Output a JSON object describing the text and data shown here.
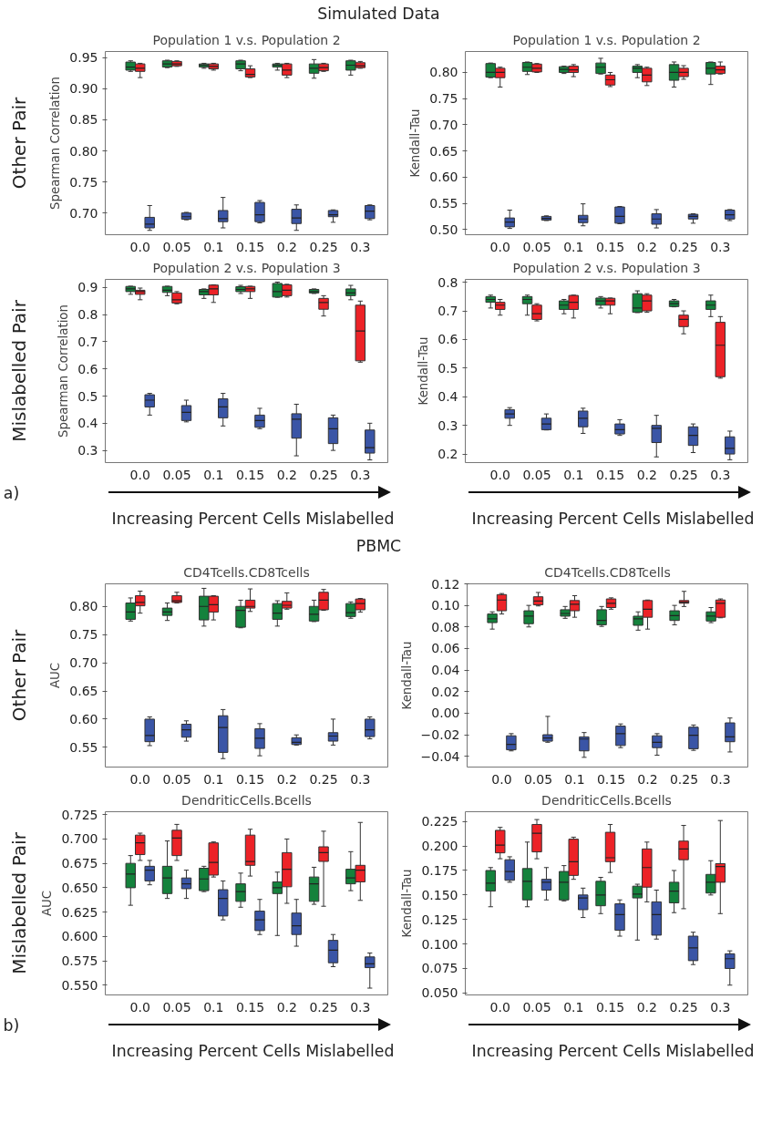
{
  "chart_data": [
    {
      "type": "box",
      "title": "Population 1 v.s. Population 2",
      "ylabel": "Spearman Correlation",
      "annotations": [
        "Simulated Data",
        "Other Pair"
      ],
      "categories": [
        "0.0",
        "0.05",
        "0.1",
        "0.15",
        "0.2",
        "0.25",
        "0.3"
      ],
      "ylim": [
        0.665,
        0.96
      ],
      "yticks": [
        {
          "value": 0.7,
          "label": "0.70"
        },
        {
          "value": 0.75,
          "label": "0.75"
        },
        {
          "value": 0.8,
          "label": "0.80"
        },
        {
          "value": 0.85,
          "label": "0.85"
        },
        {
          "value": 0.9,
          "label": "0.90"
        },
        {
          "value": 0.95,
          "label": "0.95"
        }
      ],
      "grid": false,
      "series": [
        {
          "color": "#14823c",
          "boxes": [
            {
              "low": 0.928,
              "q1": 0.93,
              "median": 0.935,
              "q3": 0.943,
              "high": 0.945
            },
            {
              "low": 0.934,
              "q1": 0.935,
              "median": 0.94,
              "q3": 0.945,
              "high": 0.946
            },
            {
              "low": 0.933,
              "q1": 0.935,
              "median": 0.938,
              "q3": 0.94,
              "high": 0.941
            },
            {
              "low": 0.929,
              "q1": 0.932,
              "median": 0.94,
              "q3": 0.945,
              "high": 0.946
            },
            {
              "low": 0.93,
              "q1": 0.935,
              "median": 0.938,
              "q3": 0.94,
              "high": 0.941
            },
            {
              "low": 0.917,
              "q1": 0.925,
              "median": 0.933,
              "q3": 0.94,
              "high": 0.947
            },
            {
              "low": 0.922,
              "q1": 0.93,
              "median": 0.938,
              "q3": 0.945,
              "high": 0.946
            }
          ]
        },
        {
          "color": "#ec2227",
          "boxes": [
            {
              "low": 0.918,
              "q1": 0.928,
              "median": 0.933,
              "q3": 0.94,
              "high": 0.941
            },
            {
              "low": 0.936,
              "q1": 0.937,
              "median": 0.94,
              "q3": 0.944,
              "high": 0.945
            },
            {
              "low": 0.93,
              "q1": 0.932,
              "median": 0.936,
              "q3": 0.94,
              "high": 0.941
            },
            {
              "low": 0.918,
              "q1": 0.919,
              "median": 0.923,
              "q3": 0.932,
              "high": 0.937
            },
            {
              "low": 0.918,
              "q1": 0.922,
              "median": 0.93,
              "q3": 0.94,
              "high": 0.941
            },
            {
              "low": 0.928,
              "q1": 0.929,
              "median": 0.934,
              "q3": 0.94,
              "high": 0.941
            },
            {
              "low": 0.933,
              "q1": 0.934,
              "median": 0.937,
              "q3": 0.942,
              "high": 0.944
            }
          ]
        },
        {
          "color": "#3a55a6",
          "boxes": [
            {
              "low": 0.672,
              "q1": 0.676,
              "median": 0.682,
              "q3": 0.693,
              "high": 0.712
            },
            {
              "low": 0.689,
              "q1": 0.69,
              "median": 0.694,
              "q3": 0.7,
              "high": 0.701
            },
            {
              "low": 0.676,
              "q1": 0.686,
              "median": 0.691,
              "q3": 0.704,
              "high": 0.725
            },
            {
              "low": 0.684,
              "q1": 0.686,
              "median": 0.697,
              "q3": 0.717,
              "high": 0.72
            },
            {
              "low": 0.672,
              "q1": 0.683,
              "median": 0.692,
              "q3": 0.706,
              "high": 0.713
            },
            {
              "low": 0.685,
              "q1": 0.694,
              "median": 0.697,
              "q3": 0.704,
              "high": 0.705
            },
            {
              "low": 0.689,
              "q1": 0.691,
              "median": 0.703,
              "q3": 0.712,
              "high": 0.713
            }
          ]
        }
      ]
    },
    {
      "type": "box",
      "title": "Population 1 v.s. Population 2",
      "ylabel": "Kendall-Tau",
      "categories": [
        "0.0",
        "0.05",
        "0.1",
        "0.15",
        "0.2",
        "0.25",
        "0.3"
      ],
      "ylim": [
        0.49,
        0.84
      ],
      "yticks": [
        {
          "value": 0.5,
          "label": "0.50"
        },
        {
          "value": 0.55,
          "label": "0.55"
        },
        {
          "value": 0.6,
          "label": "0.60"
        },
        {
          "value": 0.65,
          "label": "0.65"
        },
        {
          "value": 0.7,
          "label": "0.70"
        },
        {
          "value": 0.75,
          "label": "0.75"
        },
        {
          "value": 0.8,
          "label": "0.80"
        }
      ],
      "grid": false,
      "series": [
        {
          "color": "#14823c",
          "boxes": [
            {
              "low": 0.79,
              "q1": 0.791,
              "median": 0.8,
              "q3": 0.817,
              "high": 0.818
            },
            {
              "low": 0.796,
              "q1": 0.802,
              "median": 0.81,
              "q3": 0.819,
              "high": 0.82
            },
            {
              "low": 0.798,
              "q1": 0.8,
              "median": 0.806,
              "q3": 0.811,
              "high": 0.812
            },
            {
              "low": 0.797,
              "q1": 0.798,
              "median": 0.81,
              "q3": 0.818,
              "high": 0.827
            },
            {
              "low": 0.79,
              "q1": 0.8,
              "median": 0.808,
              "q3": 0.812,
              "high": 0.815
            },
            {
              "low": 0.772,
              "q1": 0.785,
              "median": 0.8,
              "q3": 0.815,
              "high": 0.82
            },
            {
              "low": 0.777,
              "q1": 0.797,
              "median": 0.808,
              "q3": 0.819,
              "high": 0.82
            }
          ]
        },
        {
          "color": "#ec2227",
          "boxes": [
            {
              "low": 0.772,
              "q1": 0.79,
              "median": 0.8,
              "q3": 0.808,
              "high": 0.81
            },
            {
              "low": 0.8,
              "q1": 0.801,
              "median": 0.808,
              "q3": 0.816,
              "high": 0.817
            },
            {
              "low": 0.792,
              "q1": 0.8,
              "median": 0.805,
              "q3": 0.812,
              "high": 0.815
            },
            {
              "low": 0.773,
              "q1": 0.776,
              "median": 0.786,
              "q3": 0.795,
              "high": 0.8
            },
            {
              "low": 0.775,
              "q1": 0.782,
              "median": 0.795,
              "q3": 0.808,
              "high": 0.81
            },
            {
              "low": 0.787,
              "q1": 0.792,
              "median": 0.8,
              "q3": 0.808,
              "high": 0.813
            },
            {
              "low": 0.797,
              "q1": 0.798,
              "median": 0.805,
              "q3": 0.812,
              "high": 0.82
            }
          ]
        },
        {
          "color": "#3a55a6",
          "boxes": [
            {
              "low": 0.502,
              "q1": 0.505,
              "median": 0.514,
              "q3": 0.522,
              "high": 0.537
            },
            {
              "low": 0.517,
              "q1": 0.518,
              "median": 0.521,
              "q3": 0.525,
              "high": 0.526
            },
            {
              "low": 0.507,
              "q1": 0.513,
              "median": 0.52,
              "q3": 0.527,
              "high": 0.549
            },
            {
              "low": 0.511,
              "q1": 0.512,
              "median": 0.525,
              "q3": 0.543,
              "high": 0.544
            },
            {
              "low": 0.503,
              "q1": 0.51,
              "median": 0.52,
              "q3": 0.53,
              "high": 0.538
            },
            {
              "low": 0.512,
              "q1": 0.52,
              "median": 0.525,
              "q3": 0.529,
              "high": 0.53
            },
            {
              "low": 0.517,
              "q1": 0.52,
              "median": 0.528,
              "q3": 0.537,
              "high": 0.538
            }
          ]
        }
      ]
    },
    {
      "type": "box",
      "title": "Population 2 v.s. Population 3",
      "ylabel": "Spearman Correlation",
      "annotations": [
        "Mislabelled Pair",
        "a)",
        "Increasing Percent Cells Mislabelled"
      ],
      "categories": [
        "0.0",
        "0.05",
        "0.1",
        "0.15",
        "0.2",
        "0.25",
        "0.3"
      ],
      "ylim": [
        0.255,
        0.93
      ],
      "yticks": [
        {
          "value": 0.3,
          "label": "0.3"
        },
        {
          "value": 0.4,
          "label": "0.4"
        },
        {
          "value": 0.5,
          "label": "0.5"
        },
        {
          "value": 0.6,
          "label": "0.6"
        },
        {
          "value": 0.7,
          "label": "0.7"
        },
        {
          "value": 0.8,
          "label": "0.8"
        },
        {
          "value": 0.9,
          "label": "0.9"
        }
      ],
      "grid": false,
      "series": [
        {
          "color": "#14823c",
          "boxes": [
            {
              "low": 0.875,
              "q1": 0.885,
              "median": 0.895,
              "q3": 0.904,
              "high": 0.905
            },
            {
              "low": 0.87,
              "q1": 0.882,
              "median": 0.89,
              "q3": 0.904,
              "high": 0.905
            },
            {
              "low": 0.86,
              "q1": 0.873,
              "median": 0.885,
              "q3": 0.893,
              "high": 0.895
            },
            {
              "low": 0.878,
              "q1": 0.885,
              "median": 0.893,
              "q3": 0.903,
              "high": 0.908
            },
            {
              "low": 0.864,
              "q1": 0.865,
              "median": 0.885,
              "q3": 0.915,
              "high": 0.92
            },
            {
              "low": 0.878,
              "q1": 0.88,
              "median": 0.885,
              "q3": 0.893,
              "high": 0.895
            },
            {
              "low": 0.855,
              "q1": 0.87,
              "median": 0.88,
              "q3": 0.895,
              "high": 0.908
            }
          ]
        },
        {
          "color": "#ec2227",
          "boxes": [
            {
              "low": 0.855,
              "q1": 0.875,
              "median": 0.885,
              "q3": 0.89,
              "high": 0.898
            },
            {
              "low": 0.84,
              "q1": 0.843,
              "median": 0.855,
              "q3": 0.88,
              "high": 0.885
            },
            {
              "low": 0.845,
              "q1": 0.873,
              "median": 0.895,
              "q3": 0.909,
              "high": 0.91
            },
            {
              "low": 0.86,
              "q1": 0.885,
              "median": 0.895,
              "q3": 0.904,
              "high": 0.905
            },
            {
              "low": 0.865,
              "q1": 0.87,
              "median": 0.89,
              "q3": 0.91,
              "high": 0.912
            },
            {
              "low": 0.795,
              "q1": 0.82,
              "median": 0.845,
              "q3": 0.86,
              "high": 0.87
            },
            {
              "low": 0.625,
              "q1": 0.63,
              "median": 0.74,
              "q3": 0.835,
              "high": 0.85
            }
          ]
        },
        {
          "color": "#3a55a6",
          "boxes": [
            {
              "low": 0.43,
              "q1": 0.46,
              "median": 0.485,
              "q3": 0.505,
              "high": 0.51
            },
            {
              "low": 0.405,
              "q1": 0.41,
              "median": 0.44,
              "q3": 0.465,
              "high": 0.485
            },
            {
              "low": 0.39,
              "q1": 0.42,
              "median": 0.46,
              "q3": 0.49,
              "high": 0.51
            },
            {
              "low": 0.38,
              "q1": 0.385,
              "median": 0.41,
              "q3": 0.43,
              "high": 0.455
            },
            {
              "low": 0.28,
              "q1": 0.345,
              "median": 0.415,
              "q3": 0.435,
              "high": 0.47
            },
            {
              "low": 0.3,
              "q1": 0.325,
              "median": 0.38,
              "q3": 0.42,
              "high": 0.43
            },
            {
              "low": 0.265,
              "q1": 0.29,
              "median": 0.31,
              "q3": 0.375,
              "high": 0.4
            }
          ]
        }
      ]
    },
    {
      "type": "box",
      "title": "Population 2 v.s. Population 3",
      "ylabel": "Kendall-Tau",
      "annotations": [
        "Increasing Percent Cells Mislabelled"
      ],
      "categories": [
        "0.0",
        "0.05",
        "0.1",
        "0.15",
        "0.2",
        "0.25",
        "0.3"
      ],
      "ylim": [
        0.17,
        0.81
      ],
      "yticks": [
        {
          "value": 0.2,
          "label": "0.2"
        },
        {
          "value": 0.3,
          "label": "0.3"
        },
        {
          "value": 0.4,
          "label": "0.4"
        },
        {
          "value": 0.5,
          "label": "0.5"
        },
        {
          "value": 0.6,
          "label": "0.6"
        },
        {
          "value": 0.7,
          "label": "0.7"
        },
        {
          "value": 0.8,
          "label": "0.8"
        }
      ],
      "grid": false,
      "series": [
        {
          "color": "#14823c",
          "boxes": [
            {
              "low": 0.71,
              "q1": 0.73,
              "median": 0.74,
              "q3": 0.75,
              "high": 0.755
            },
            {
              "low": 0.685,
              "q1": 0.725,
              "median": 0.74,
              "q3": 0.75,
              "high": 0.755
            },
            {
              "low": 0.69,
              "q1": 0.705,
              "median": 0.72,
              "q3": 0.735,
              "high": 0.74
            },
            {
              "low": 0.71,
              "q1": 0.72,
              "median": 0.735,
              "q3": 0.745,
              "high": 0.75
            },
            {
              "low": 0.694,
              "q1": 0.695,
              "median": 0.71,
              "q3": 0.76,
              "high": 0.77
            },
            {
              "low": 0.714,
              "q1": 0.715,
              "median": 0.725,
              "q3": 0.735,
              "high": 0.74
            },
            {
              "low": 0.68,
              "q1": 0.705,
              "median": 0.72,
              "q3": 0.735,
              "high": 0.755
            }
          ]
        },
        {
          "color": "#ec2227",
          "boxes": [
            {
              "low": 0.685,
              "q1": 0.705,
              "median": 0.72,
              "q3": 0.73,
              "high": 0.74
            },
            {
              "low": 0.665,
              "q1": 0.67,
              "median": 0.69,
              "q3": 0.72,
              "high": 0.725
            },
            {
              "low": 0.675,
              "q1": 0.705,
              "median": 0.73,
              "q3": 0.754,
              "high": 0.755
            },
            {
              "low": 0.69,
              "q1": 0.72,
              "median": 0.735,
              "q3": 0.744,
              "high": 0.745
            },
            {
              "low": 0.695,
              "q1": 0.7,
              "median": 0.735,
              "q3": 0.755,
              "high": 0.76
            },
            {
              "low": 0.62,
              "q1": 0.645,
              "median": 0.67,
              "q3": 0.685,
              "high": 0.7
            },
            {
              "low": 0.465,
              "q1": 0.47,
              "median": 0.58,
              "q3": 0.66,
              "high": 0.68
            }
          ]
        },
        {
          "color": "#3a55a6",
          "boxes": [
            {
              "low": 0.3,
              "q1": 0.325,
              "median": 0.34,
              "q3": 0.355,
              "high": 0.362
            },
            {
              "low": 0.284,
              "q1": 0.285,
              "median": 0.305,
              "q3": 0.325,
              "high": 0.34
            },
            {
              "low": 0.272,
              "q1": 0.295,
              "median": 0.325,
              "q3": 0.35,
              "high": 0.36
            },
            {
              "low": 0.265,
              "q1": 0.27,
              "median": 0.285,
              "q3": 0.305,
              "high": 0.32
            },
            {
              "low": 0.19,
              "q1": 0.24,
              "median": 0.29,
              "q3": 0.3,
              "high": 0.335
            },
            {
              "low": 0.205,
              "q1": 0.23,
              "median": 0.265,
              "q3": 0.295,
              "high": 0.305
            },
            {
              "low": 0.18,
              "q1": 0.2,
              "median": 0.22,
              "q3": 0.26,
              "high": 0.28
            }
          ]
        }
      ]
    },
    {
      "type": "box",
      "title": "CD4Tcells.CD8Tcells",
      "ylabel": "AUC",
      "annotations": [
        "PBMC",
        "Other Pair"
      ],
      "categories": [
        "0.0",
        "0.05",
        "0.1",
        "0.15",
        "0.2",
        "0.25",
        "0.3"
      ],
      "ylim": [
        0.515,
        0.84
      ],
      "yticks": [
        {
          "value": 0.55,
          "label": "0.55"
        },
        {
          "value": 0.6,
          "label": "0.60"
        },
        {
          "value": 0.65,
          "label": "0.65"
        },
        {
          "value": 0.7,
          "label": "0.70"
        },
        {
          "value": 0.75,
          "label": "0.75"
        },
        {
          "value": 0.8,
          "label": "0.80"
        }
      ],
      "grid": false,
      "series": [
        {
          "color": "#14823c",
          "boxes": [
            {
              "low": 0.774,
              "q1": 0.777,
              "median": 0.79,
              "q3": 0.806,
              "high": 0.815
            },
            {
              "low": 0.775,
              "q1": 0.784,
              "median": 0.79,
              "q3": 0.797,
              "high": 0.806
            },
            {
              "low": 0.765,
              "q1": 0.776,
              "median": 0.8,
              "q3": 0.818,
              "high": 0.832
            },
            {
              "low": 0.762,
              "q1": 0.763,
              "median": 0.793,
              "q3": 0.8,
              "high": 0.811
            },
            {
              "low": 0.765,
              "q1": 0.777,
              "median": 0.788,
              "q3": 0.805,
              "high": 0.81
            },
            {
              "low": 0.773,
              "q1": 0.774,
              "median": 0.786,
              "q3": 0.8,
              "high": 0.811
            },
            {
              "low": 0.779,
              "q1": 0.782,
              "median": 0.789,
              "q3": 0.805,
              "high": 0.808
            }
          ]
        },
        {
          "color": "#ec2227",
          "boxes": [
            {
              "low": 0.788,
              "q1": 0.801,
              "median": 0.807,
              "q3": 0.819,
              "high": 0.827
            },
            {
              "low": 0.806,
              "q1": 0.807,
              "median": 0.81,
              "q3": 0.819,
              "high": 0.825
            },
            {
              "low": 0.776,
              "q1": 0.79,
              "median": 0.803,
              "q3": 0.818,
              "high": 0.819
            },
            {
              "low": 0.791,
              "q1": 0.797,
              "median": 0.8,
              "q3": 0.811,
              "high": 0.831
            },
            {
              "low": 0.795,
              "q1": 0.797,
              "median": 0.802,
              "q3": 0.809,
              "high": 0.824
            },
            {
              "low": 0.793,
              "q1": 0.794,
              "median": 0.811,
              "q3": 0.825,
              "high": 0.83
            },
            {
              "low": 0.79,
              "q1": 0.794,
              "median": 0.805,
              "q3": 0.813,
              "high": 0.814
            }
          ]
        },
        {
          "color": "#3a55a6",
          "boxes": [
            {
              "low": 0.553,
              "q1": 0.56,
              "median": 0.571,
              "q3": 0.6,
              "high": 0.604
            },
            {
              "low": 0.561,
              "q1": 0.568,
              "median": 0.581,
              "q3": 0.591,
              "high": 0.597
            },
            {
              "low": 0.53,
              "q1": 0.541,
              "median": 0.585,
              "q3": 0.606,
              "high": 0.617
            },
            {
              "low": 0.535,
              "q1": 0.548,
              "median": 0.566,
              "q3": 0.583,
              "high": 0.592
            },
            {
              "low": 0.554,
              "q1": 0.555,
              "median": 0.559,
              "q3": 0.567,
              "high": 0.572
            },
            {
              "low": 0.554,
              "q1": 0.561,
              "median": 0.57,
              "q3": 0.576,
              "high": 0.6
            },
            {
              "low": 0.565,
              "q1": 0.569,
              "median": 0.581,
              "q3": 0.6,
              "high": 0.604
            }
          ]
        }
      ]
    },
    {
      "type": "box",
      "title": "CD4Tcells.CD8Tcells",
      "ylabel": "Kendall-Tau",
      "categories": [
        "0.0",
        "0.05",
        "0.1",
        "0.15",
        "0.2",
        "0.25",
        "0.3"
      ],
      "ylim": [
        -0.05,
        0.12
      ],
      "yticks": [
        {
          "value": -0.04,
          "label": "−0.04"
        },
        {
          "value": -0.02,
          "label": "−0.02"
        },
        {
          "value": 0,
          "label": "0.00"
        },
        {
          "value": 0.02,
          "label": "0.02"
        },
        {
          "value": 0.04,
          "label": "0.04"
        },
        {
          "value": 0.06,
          "label": "0.06"
        },
        {
          "value": 0.08,
          "label": "0.08"
        },
        {
          "value": 0.1,
          "label": "0.10"
        },
        {
          "value": 0.12,
          "label": "0.12"
        }
      ],
      "grid": false,
      "series": [
        {
          "color": "#14823c",
          "boxes": [
            {
              "low": 0.078,
              "q1": 0.084,
              "median": 0.0875,
              "q3": 0.092,
              "high": 0.094
            },
            {
              "low": 0.08,
              "q1": 0.083,
              "median": 0.09,
              "q3": 0.095,
              "high": 0.1
            },
            {
              "low": 0.088,
              "q1": 0.09,
              "median": 0.0925,
              "q3": 0.096,
              "high": 0.099
            },
            {
              "low": 0.0805,
              "q1": 0.082,
              "median": 0.086,
              "q3": 0.096,
              "high": 0.099
            },
            {
              "low": 0.077,
              "q1": 0.0815,
              "median": 0.0875,
              "q3": 0.09,
              "high": 0.094
            },
            {
              "low": 0.082,
              "q1": 0.086,
              "median": 0.0905,
              "q3": 0.095,
              "high": 0.1
            },
            {
              "low": 0.084,
              "q1": 0.0855,
              "median": 0.09,
              "q3": 0.094,
              "high": 0.098
            }
          ]
        },
        {
          "color": "#ec2227",
          "boxes": [
            {
              "low": 0.092,
              "q1": 0.095,
              "median": 0.105,
              "q3": 0.11,
              "high": 0.111
            },
            {
              "low": 0.0995,
              "q1": 0.1005,
              "median": 0.104,
              "q3": 0.108,
              "high": 0.112
            },
            {
              "low": 0.089,
              "q1": 0.095,
              "median": 0.101,
              "q3": 0.1045,
              "high": 0.109
            },
            {
              "low": 0.0965,
              "q1": 0.098,
              "median": 0.102,
              "q3": 0.106,
              "high": 0.107
            },
            {
              "low": 0.078,
              "q1": 0.089,
              "median": 0.0965,
              "q3": 0.1045,
              "high": 0.105
            },
            {
              "low": 0.099,
              "q1": 0.102,
              "median": 0.103,
              "q3": 0.1045,
              "high": 0.113
            },
            {
              "low": 0.0885,
              "q1": 0.089,
              "median": 0.102,
              "q3": 0.105,
              "high": 0.106
            }
          ]
        },
        {
          "color": "#3a55a6",
          "boxes": [
            {
              "low": -0.035,
              "q1": -0.034,
              "median": -0.029,
              "q3": -0.021,
              "high": -0.019
            },
            {
              "low": -0.027,
              "q1": -0.026,
              "median": -0.023,
              "q3": -0.02,
              "high": -0.003
            },
            {
              "low": -0.041,
              "q1": -0.035,
              "median": -0.024,
              "q3": -0.022,
              "high": -0.018
            },
            {
              "low": -0.032,
              "q1": -0.03,
              "median": -0.019,
              "q3": -0.012,
              "high": -0.01
            },
            {
              "low": -0.039,
              "q1": -0.032,
              "median": -0.027,
              "q3": -0.021,
              "high": -0.019
            },
            {
              "low": -0.0345,
              "q1": -0.033,
              "median": -0.0205,
              "q3": -0.013,
              "high": -0.011
            },
            {
              "low": -0.036,
              "q1": -0.0265,
              "median": -0.022,
              "q3": -0.009,
              "high": -0.0045
            }
          ]
        }
      ]
    },
    {
      "type": "box",
      "title": "DendriticCells.Bcells",
      "ylabel": "AUC",
      "annotations": [
        "Mislabelled Pair",
        "b)",
        "Increasing Percent Cells Mislabelled"
      ],
      "categories": [
        "0.0",
        "0.05",
        "0.1",
        "0.15",
        "0.2",
        "0.25",
        "0.3"
      ],
      "ylim": [
        0.54,
        0.728
      ],
      "yticks": [
        {
          "value": 0.55,
          "label": "0.550"
        },
        {
          "value": 0.575,
          "label": "0.575"
        },
        {
          "value": 0.6,
          "label": "0.600"
        },
        {
          "value": 0.625,
          "label": "0.625"
        },
        {
          "value": 0.65,
          "label": "0.650"
        },
        {
          "value": 0.675,
          "label": "0.675"
        },
        {
          "value": 0.7,
          "label": "0.700"
        },
        {
          "value": 0.725,
          "label": "0.725"
        }
      ],
      "grid": false,
      "series": [
        {
          "color": "#14823c",
          "boxes": [
            {
              "low": 0.632,
              "q1": 0.65,
              "median": 0.664,
              "q3": 0.675,
              "high": 0.683
            },
            {
              "low": 0.639,
              "q1": 0.644,
              "median": 0.66,
              "q3": 0.672,
              "high": 0.698
            },
            {
              "low": 0.646,
              "q1": 0.647,
              "median": 0.659,
              "q3": 0.67,
              "high": 0.672
            },
            {
              "low": 0.63,
              "q1": 0.636,
              "median": 0.646,
              "q3": 0.654,
              "high": 0.665
            },
            {
              "low": 0.601,
              "q1": 0.644,
              "median": 0.65,
              "q3": 0.656,
              "high": 0.666
            },
            {
              "low": 0.633,
              "q1": 0.636,
              "median": 0.654,
              "q3": 0.661,
              "high": 0.671
            },
            {
              "low": 0.647,
              "q1": 0.654,
              "median": 0.66,
              "q3": 0.669,
              "high": 0.687
            }
          ]
        },
        {
          "color": "#ec2227",
          "boxes": [
            {
              "low": 0.678,
              "q1": 0.684,
              "median": 0.696,
              "q3": 0.704,
              "high": 0.706
            },
            {
              "low": 0.678,
              "q1": 0.683,
              "median": 0.701,
              "q3": 0.709,
              "high": 0.715
            },
            {
              "low": 0.661,
              "q1": 0.663,
              "median": 0.676,
              "q3": 0.696,
              "high": 0.697
            },
            {
              "low": 0.662,
              "q1": 0.673,
              "median": 0.677,
              "q3": 0.704,
              "high": 0.71
            },
            {
              "low": 0.634,
              "q1": 0.651,
              "median": 0.669,
              "q3": 0.686,
              "high": 0.7
            },
            {
              "low": 0.631,
              "q1": 0.677,
              "median": 0.686,
              "q3": 0.692,
              "high": 0.708
            },
            {
              "low": 0.637,
              "q1": 0.656,
              "median": 0.668,
              "q3": 0.673,
              "high": 0.717
            }
          ]
        },
        {
          "color": "#3a55a6",
          "boxes": [
            {
              "low": 0.653,
              "q1": 0.657,
              "median": 0.668,
              "q3": 0.672,
              "high": 0.678
            },
            {
              "low": 0.639,
              "q1": 0.649,
              "median": 0.654,
              "q3": 0.66,
              "high": 0.668
            },
            {
              "low": 0.617,
              "q1": 0.621,
              "median": 0.639,
              "q3": 0.648,
              "high": 0.657
            },
            {
              "low": 0.602,
              "q1": 0.606,
              "median": 0.617,
              "q3": 0.626,
              "high": 0.638
            },
            {
              "low": 0.59,
              "q1": 0.602,
              "median": 0.611,
              "q3": 0.624,
              "high": 0.638
            },
            {
              "low": 0.569,
              "q1": 0.573,
              "median": 0.586,
              "q3": 0.596,
              "high": 0.602
            },
            {
              "low": 0.547,
              "q1": 0.568,
              "median": 0.572,
              "q3": 0.579,
              "high": 0.583
            }
          ]
        }
      ]
    },
    {
      "type": "box",
      "title": "DendriticCells.Bcells",
      "ylabel": "Kendall-Tau",
      "annotations": [
        "Increasing Percent Cells Mislabelled"
      ],
      "categories": [
        "0.0",
        "0.05",
        "0.1",
        "0.15",
        "0.2",
        "0.25",
        "0.3"
      ],
      "ylim": [
        0.048,
        0.235
      ],
      "yticks": [
        {
          "value": 0.05,
          "label": "0.050"
        },
        {
          "value": 0.075,
          "label": "0.075"
        },
        {
          "value": 0.1,
          "label": "0.100"
        },
        {
          "value": 0.125,
          "label": "0.125"
        },
        {
          "value": 0.15,
          "label": "0.150"
        },
        {
          "value": 0.175,
          "label": "0.175"
        },
        {
          "value": 0.2,
          "label": "0.200"
        },
        {
          "value": 0.225,
          "label": "0.225"
        }
      ],
      "grid": false,
      "series": [
        {
          "color": "#14823c",
          "boxes": [
            {
              "low": 0.138,
              "q1": 0.154,
              "median": 0.162,
              "q3": 0.175,
              "high": 0.178
            },
            {
              "low": 0.138,
              "q1": 0.145,
              "median": 0.164,
              "q3": 0.177,
              "high": 0.204
            },
            {
              "low": 0.144,
              "q1": 0.145,
              "median": 0.163,
              "q3": 0.174,
              "high": 0.18
            },
            {
              "low": 0.131,
              "q1": 0.139,
              "median": 0.15,
              "q3": 0.164,
              "high": 0.168
            },
            {
              "low": 0.104,
              "q1": 0.147,
              "median": 0.151,
              "q3": 0.159,
              "high": 0.161
            },
            {
              "low": 0.132,
              "q1": 0.142,
              "median": 0.154,
              "q3": 0.163,
              "high": 0.175
            },
            {
              "low": 0.15,
              "q1": 0.152,
              "median": 0.163,
              "q3": 0.171,
              "high": 0.185
            }
          ]
        },
        {
          "color": "#ec2227",
          "boxes": [
            {
              "low": 0.187,
              "q1": 0.193,
              "median": 0.201,
              "q3": 0.216,
              "high": 0.219
            },
            {
              "low": 0.187,
              "q1": 0.194,
              "median": 0.213,
              "q3": 0.222,
              "high": 0.227
            },
            {
              "low": 0.166,
              "q1": 0.17,
              "median": 0.184,
              "q3": 0.207,
              "high": 0.209
            },
            {
              "low": 0.173,
              "q1": 0.184,
              "median": 0.188,
              "q3": 0.214,
              "high": 0.222
            },
            {
              "low": 0.143,
              "q1": 0.158,
              "median": 0.178,
              "q3": 0.197,
              "high": 0.204
            },
            {
              "low": 0.136,
              "q1": 0.186,
              "median": 0.197,
              "q3": 0.205,
              "high": 0.221
            },
            {
              "low": 0.131,
              "q1": 0.163,
              "median": 0.179,
              "q3": 0.182,
              "high": 0.226
            }
          ]
        },
        {
          "color": "#3a55a6",
          "boxes": [
            {
              "low": 0.163,
              "q1": 0.165,
              "median": 0.174,
              "q3": 0.186,
              "high": 0.189
            },
            {
              "low": 0.145,
              "q1": 0.155,
              "median": 0.163,
              "q3": 0.166,
              "high": 0.178
            },
            {
              "low": 0.127,
              "q1": 0.135,
              "median": 0.147,
              "q3": 0.15,
              "high": 0.157
            },
            {
              "low": 0.108,
              "q1": 0.114,
              "median": 0.13,
              "q3": 0.141,
              "high": 0.145
            },
            {
              "low": 0.105,
              "q1": 0.109,
              "median": 0.13,
              "q3": 0.143,
              "high": 0.155
            },
            {
              "low": 0.079,
              "q1": 0.083,
              "median": 0.096,
              "q3": 0.108,
              "high": 0.112
            },
            {
              "low": 0.058,
              "q1": 0.075,
              "median": 0.085,
              "q3": 0.09,
              "high": 0.093
            }
          ]
        }
      ]
    }
  ]
}
